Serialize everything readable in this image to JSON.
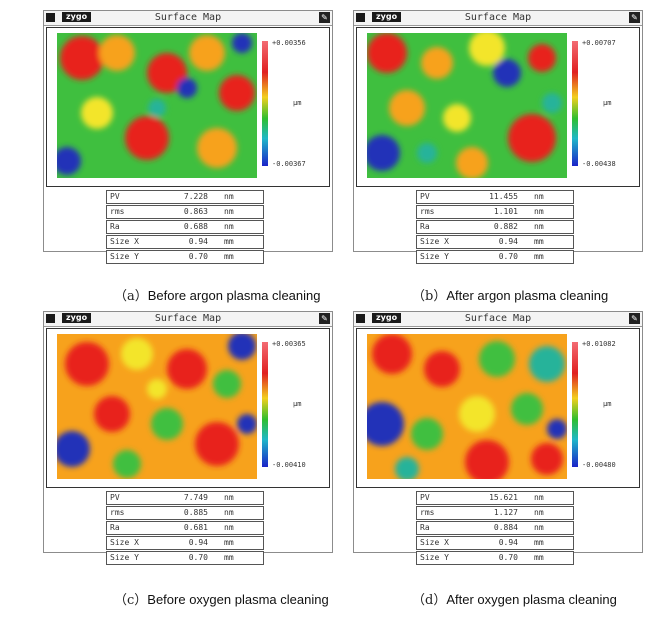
{
  "panels": [
    {
      "window_title": "Surface Map",
      "logo": "zygo",
      "scale_max": "+0.00356",
      "scale_min": "-0.00367",
      "unit": "µm",
      "stats": [
        {
          "label": "PV",
          "value": "7.228",
          "unit": "nm"
        },
        {
          "label": "rms",
          "value": "0.863",
          "unit": "nm"
        },
        {
          "label": "Ra",
          "value": "0.688",
          "unit": "nm"
        },
        {
          "label": "Size X",
          "value": "0.94",
          "unit": "mm"
        },
        {
          "label": "Size Y",
          "value": "0.70",
          "unit": "mm"
        }
      ],
      "caption_letter": "（a）",
      "caption_text": "Before argon plasma cleaning"
    },
    {
      "window_title": "Surface Map",
      "logo": "zygo",
      "scale_max": "+0.00707",
      "scale_min": "-0.00438",
      "unit": "µm",
      "stats": [
        {
          "label": "PV",
          "value": "11.455",
          "unit": "nm"
        },
        {
          "label": "rms",
          "value": "1.101",
          "unit": "nm"
        },
        {
          "label": "Ra",
          "value": "0.882",
          "unit": "nm"
        },
        {
          "label": "Size X",
          "value": "0.94",
          "unit": "mm"
        },
        {
          "label": "Size Y",
          "value": "0.70",
          "unit": "mm"
        }
      ],
      "caption_letter": "（b）",
      "caption_text": "After argon plasma cleaning"
    },
    {
      "window_title": "Surface Map",
      "logo": "zygo",
      "scale_max": "+0.00365",
      "scale_min": "-0.00410",
      "unit": "µm",
      "stats": [
        {
          "label": "PV",
          "value": "7.749",
          "unit": "nm"
        },
        {
          "label": "rms",
          "value": "0.885",
          "unit": "nm"
        },
        {
          "label": "Ra",
          "value": "0.681",
          "unit": "nm"
        },
        {
          "label": "Size X",
          "value": "0.94",
          "unit": "mm"
        },
        {
          "label": "Size Y",
          "value": "0.70",
          "unit": "mm"
        }
      ],
      "caption_letter": "（c）",
      "caption_text": "Before oxygen plasma cleaning"
    },
    {
      "window_title": "Surface Map",
      "logo": "zygo",
      "scale_max": "+0.01082",
      "scale_min": "-0.00480",
      "unit": "µm",
      "stats": [
        {
          "label": "PV",
          "value": "15.621",
          "unit": "nm"
        },
        {
          "label": "rms",
          "value": "1.127",
          "unit": "nm"
        },
        {
          "label": "Ra",
          "value": "0.884",
          "unit": "nm"
        },
        {
          "label": "Size X",
          "value": "0.94",
          "unit": "mm"
        },
        {
          "label": "Size Y",
          "value": "0.70",
          "unit": "mm"
        }
      ],
      "caption_letter": "（d）",
      "caption_text": "After oxygen plasma cleaning"
    }
  ],
  "colors": {
    "map_red": "#e8231f",
    "map_orange": "#f7a21c",
    "map_yellow": "#f3e52a",
    "map_green": "#3fbf3f",
    "map_teal": "#26b39a",
    "map_blue": "#2433b8",
    "scale_pink": "#f36b73"
  }
}
